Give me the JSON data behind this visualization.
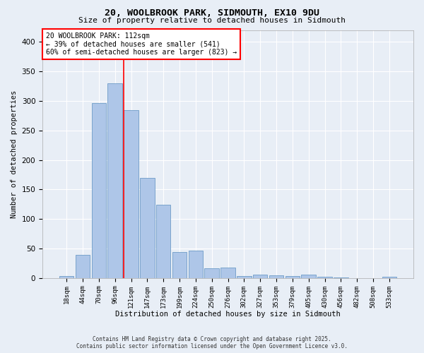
{
  "title": "20, WOOLBROOK PARK, SIDMOUTH, EX10 9DU",
  "subtitle": "Size of property relative to detached houses in Sidmouth",
  "xlabel": "Distribution of detached houses by size in Sidmouth",
  "ylabel": "Number of detached properties",
  "footer_line1": "Contains HM Land Registry data © Crown copyright and database right 2025.",
  "footer_line2": "Contains public sector information licensed under the Open Government Licence v3.0.",
  "categories": [
    "18sqm",
    "44sqm",
    "70sqm",
    "96sqm",
    "121sqm",
    "147sqm",
    "173sqm",
    "199sqm",
    "224sqm",
    "250sqm",
    "276sqm",
    "302sqm",
    "327sqm",
    "353sqm",
    "379sqm",
    "405sqm",
    "430sqm",
    "456sqm",
    "482sqm",
    "508sqm",
    "533sqm"
  ],
  "values": [
    3,
    39,
    296,
    330,
    284,
    169,
    124,
    44,
    46,
    16,
    18,
    4,
    6,
    5,
    3,
    6,
    2,
    1,
    0,
    0,
    2
  ],
  "bar_color": "#aec6e8",
  "bar_edge_color": "#5a8fc0",
  "background_color": "#e8eef6",
  "grid_color": "#ffffff",
  "annotation_text": "20 WOOLBROOK PARK: 112sqm\n← 39% of detached houses are smaller (541)\n60% of semi-detached houses are larger (823) →",
  "redline_index": 4,
  "ylim": [
    0,
    420
  ],
  "yticks": [
    0,
    50,
    100,
    150,
    200,
    250,
    300,
    350,
    400
  ]
}
